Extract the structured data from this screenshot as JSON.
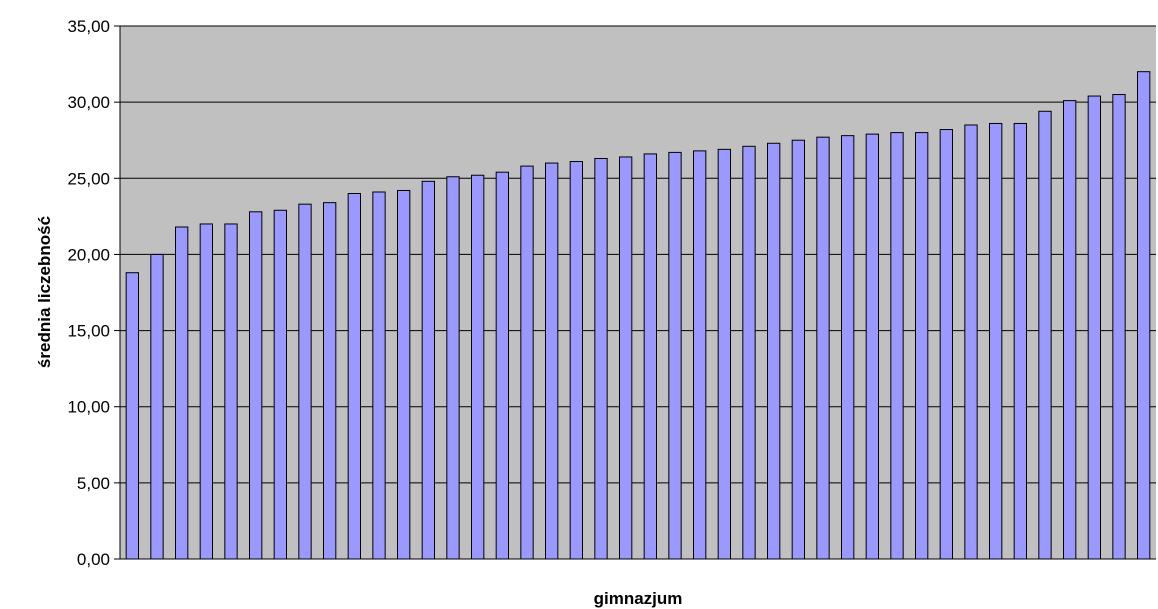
{
  "chart_data": {
    "type": "bar",
    "xlabel": "gimnazjum",
    "ylabel": "średnia liczebność",
    "ylim": [
      0,
      35
    ],
    "yticks": [
      "0,00",
      "5,00",
      "10,00",
      "15,00",
      "20,00",
      "25,00",
      "30,00",
      "35,00"
    ],
    "grid": true,
    "values": [
      18.8,
      20.0,
      21.8,
      22.0,
      22.0,
      22.8,
      22.9,
      23.3,
      23.4,
      24.0,
      24.1,
      24.2,
      24.8,
      25.1,
      25.2,
      25.4,
      25.8,
      26.0,
      26.1,
      26.3,
      26.4,
      26.6,
      26.7,
      26.8,
      26.9,
      27.1,
      27.3,
      27.5,
      27.7,
      27.8,
      27.9,
      28.0,
      28.0,
      28.2,
      28.5,
      28.6,
      28.6,
      29.4,
      30.1,
      30.4,
      30.5,
      32.0
    ],
    "colors": {
      "plot_background": "#c0c0c0",
      "bar_fill": "#9999ff",
      "bar_stroke": "#000000",
      "gridline": "#000000"
    }
  }
}
